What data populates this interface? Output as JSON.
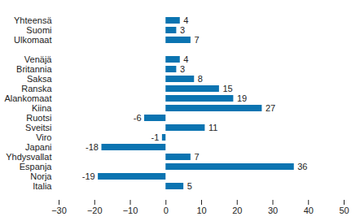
{
  "chart_data": {
    "type": "bar",
    "orientation": "horizontal",
    "categories": [
      "Yhteensä",
      "Suomi",
      "Ulkomaat",
      null,
      "Venäjä",
      "Britannia",
      "Saksa",
      "Ranska",
      "Alankomaat",
      "Kiina",
      "Ruotsi",
      "Sveitsi",
      "Viro",
      "Japani",
      "Yhdysvallat",
      "Espanja",
      "Norja",
      "Italia"
    ],
    "values": [
      4,
      3,
      7,
      null,
      4,
      3,
      8,
      15,
      19,
      27,
      -6,
      11,
      -1,
      -18,
      7,
      36,
      -19,
      5
    ],
    "color": "#0b74b1",
    "xlim": [
      -30,
      50
    ],
    "xticks": [
      -30,
      -20,
      -10,
      0,
      10,
      20,
      30,
      40,
      50
    ],
    "grid": false,
    "data_labels": true
  }
}
